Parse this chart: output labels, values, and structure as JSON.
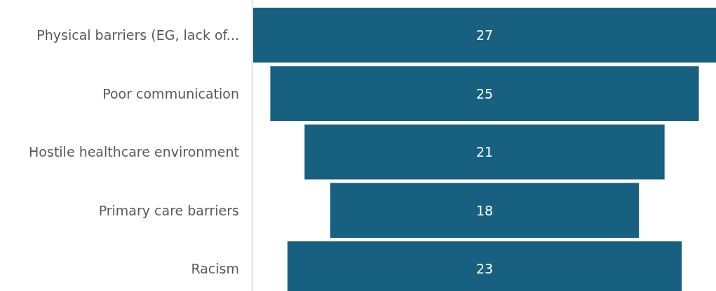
{
  "chart_data": {
    "type": "other",
    "categories": [
      "Physical barriers (EG, lack of...",
      "Poor communication",
      "Hostile healthcare environment",
      "Primary care barriers",
      "Racism"
    ],
    "values": [
      27,
      25,
      21,
      18,
      23
    ],
    "color": "#17607f",
    "data_labels": true
  }
}
